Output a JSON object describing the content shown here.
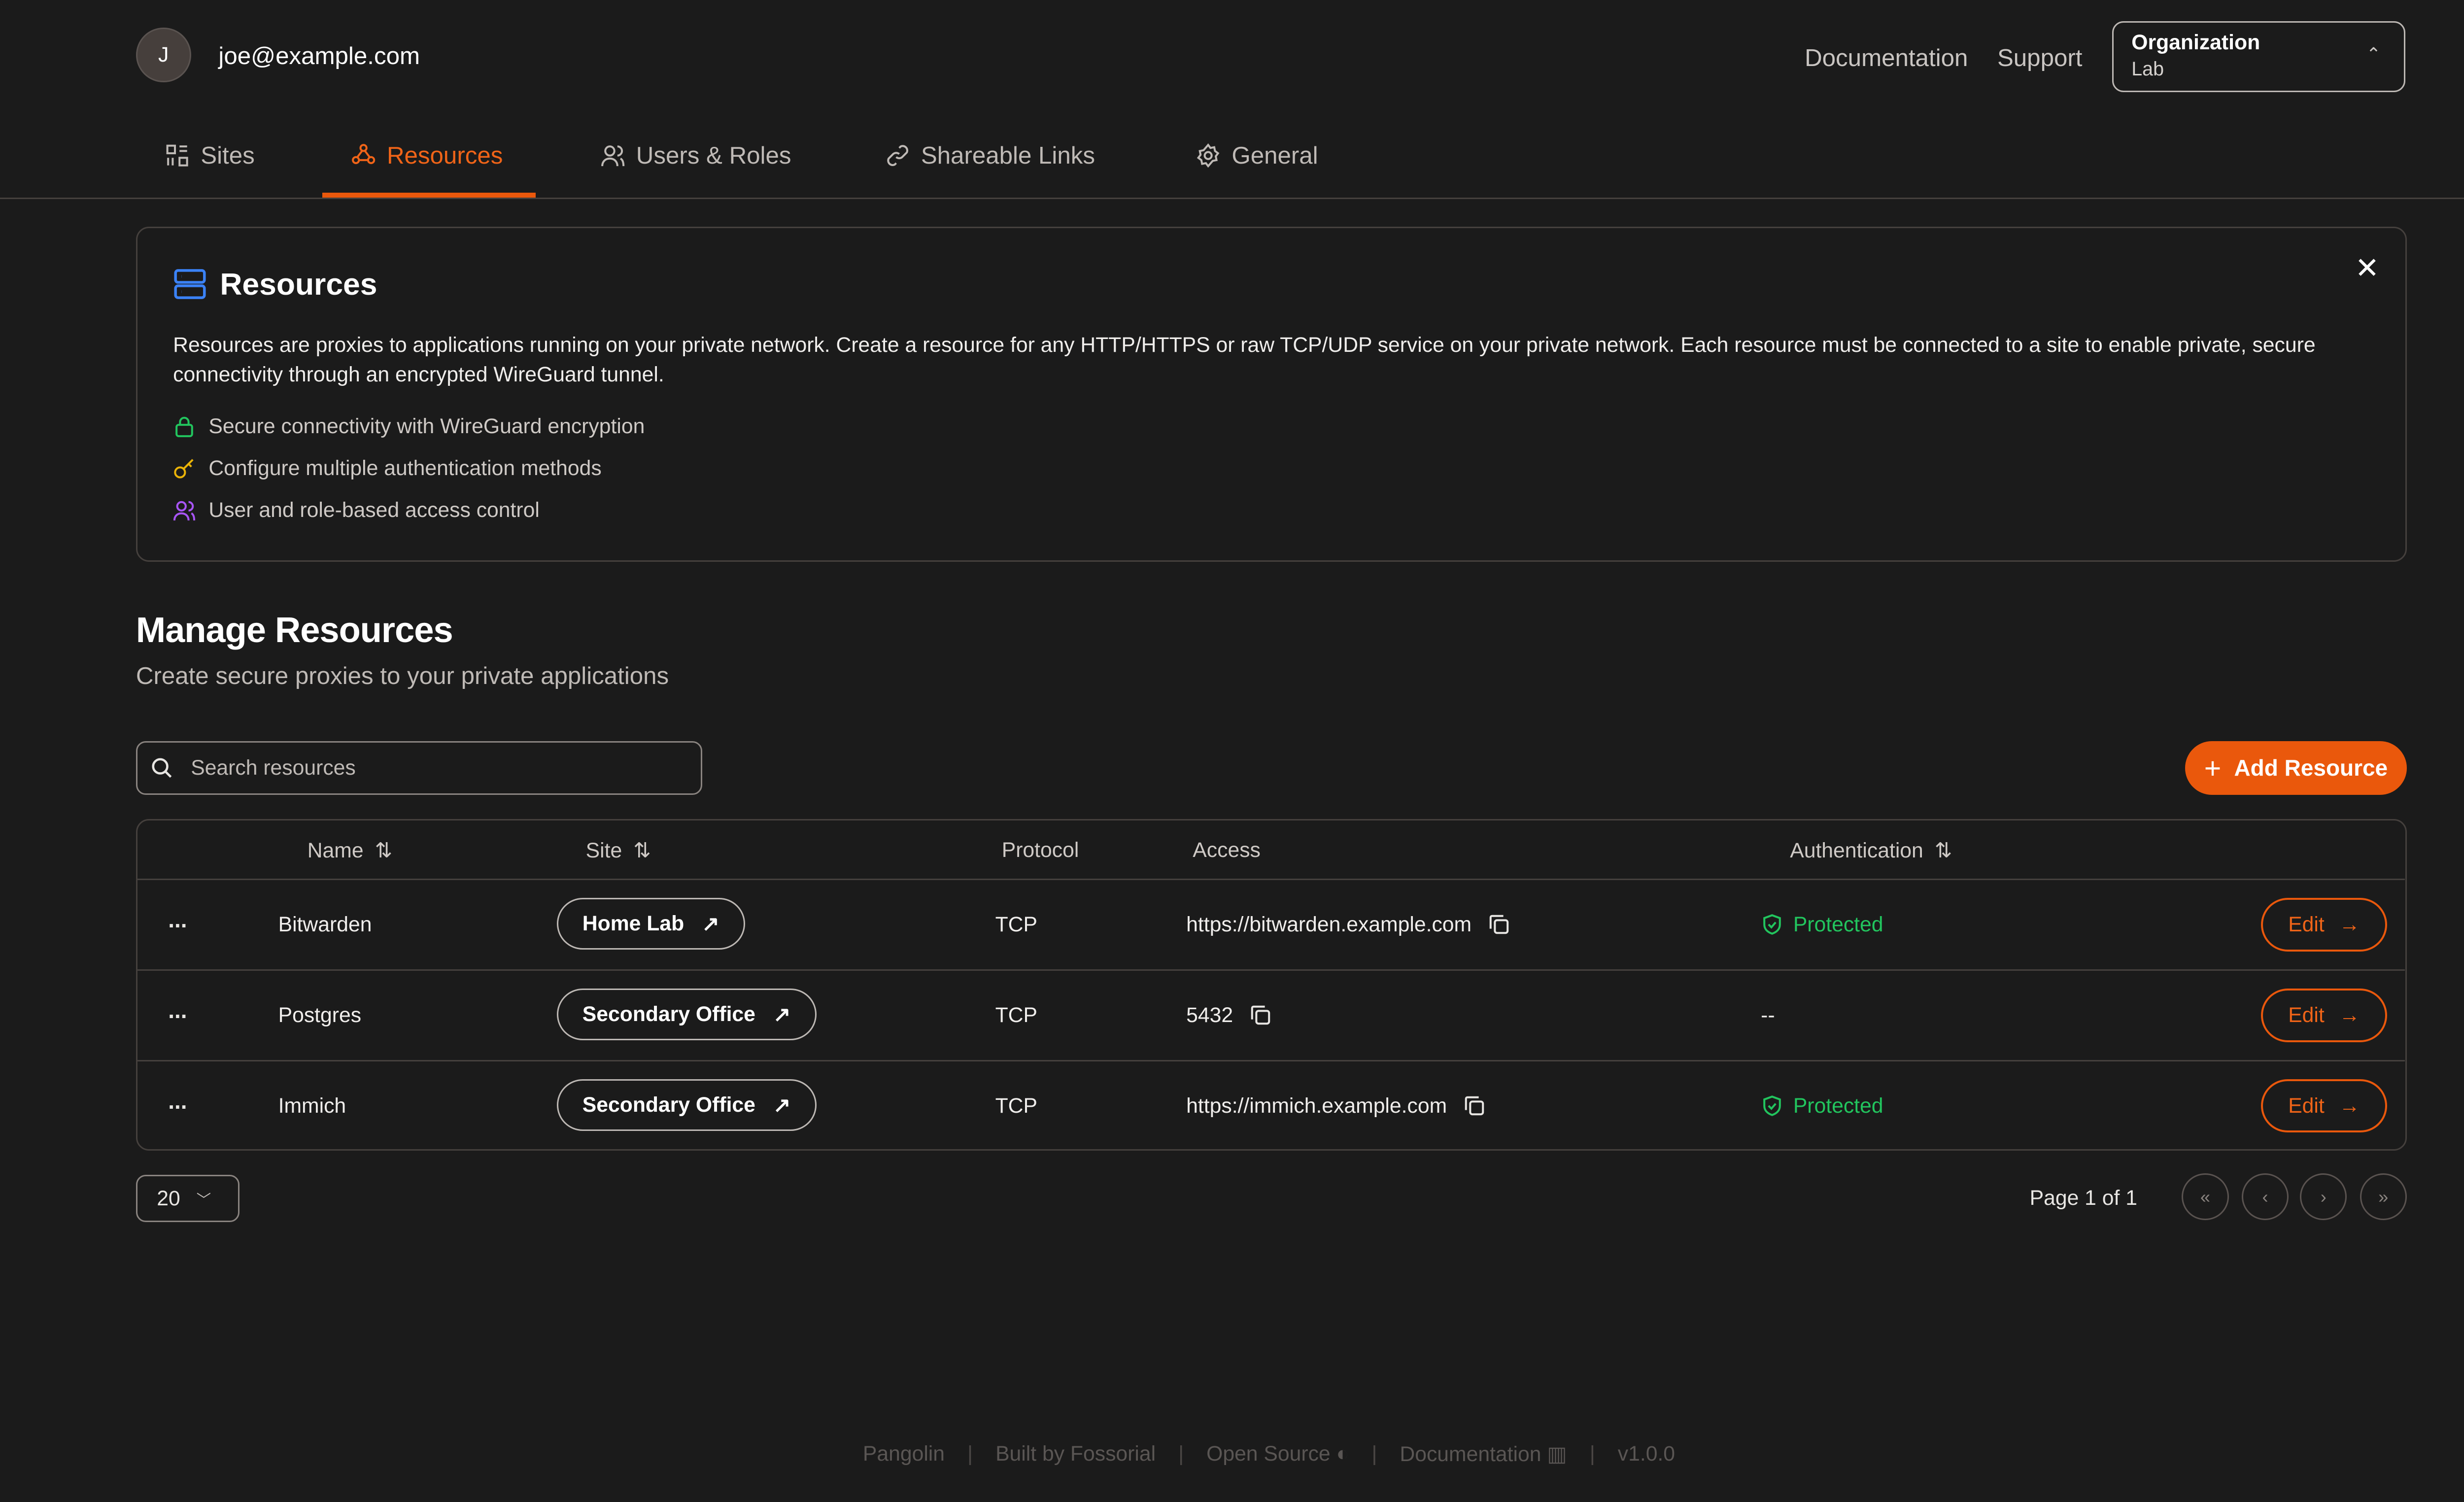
{
  "header": {
    "avatar_initial": "J",
    "user_email": "joe@example.com",
    "links": [
      "Documentation",
      "Support"
    ],
    "org_selector": {
      "label": "Organization",
      "value": "Lab"
    }
  },
  "tabs": [
    {
      "label": "Sites",
      "icon": "sites-icon"
    },
    {
      "label": "Resources",
      "icon": "resources-icon",
      "active": true
    },
    {
      "label": "Users & Roles",
      "icon": "users-icon"
    },
    {
      "label": "Shareable Links",
      "icon": "link-icon"
    },
    {
      "label": "General",
      "icon": "gear-icon"
    }
  ],
  "info_panel": {
    "title": "Resources",
    "description": "Resources are proxies to applications running on your private network. Create a resource for any HTTP/HTTPS or raw TCP/UDP service on your private network. Each resource must be connected to a site to enable private, secure connectivity through an encrypted WireGuard tunnel.",
    "features": [
      "Secure connectivity with WireGuard encryption",
      "Configure multiple authentication methods",
      "User and role-based access control"
    ]
  },
  "main": {
    "title": "Manage Resources",
    "subtitle": "Create secure proxies to your private applications",
    "search_placeholder": "Search resources",
    "add_button": "Add Resource"
  },
  "table": {
    "columns": [
      "Name",
      "Site",
      "Protocol",
      "Access",
      "Authentication"
    ],
    "rows": [
      {
        "name": "Bitwarden",
        "site": "Home Lab",
        "protocol": "TCP",
        "access": "https://bitwarden.example.com",
        "auth": "Protected"
      },
      {
        "name": "Postgres",
        "site": "Secondary Office",
        "protocol": "TCP",
        "access": "5432",
        "auth": "--"
      },
      {
        "name": "Immich",
        "site": "Secondary Office",
        "protocol": "TCP",
        "access": "https://immich.example.com",
        "auth": "Protected"
      }
    ],
    "row_menu": "...",
    "edit_label": "Edit"
  },
  "pagination": {
    "page_size": "20",
    "page_info": "Page 1 of 1"
  },
  "footer": {
    "items": [
      "Pangolin",
      "Built by Fossorial",
      "Open Source",
      "Documentation",
      "v1.0.0"
    ]
  },
  "colors": {
    "accent": "#ea580c",
    "protected": "#22c55e",
    "background": "#1b1b1b"
  }
}
